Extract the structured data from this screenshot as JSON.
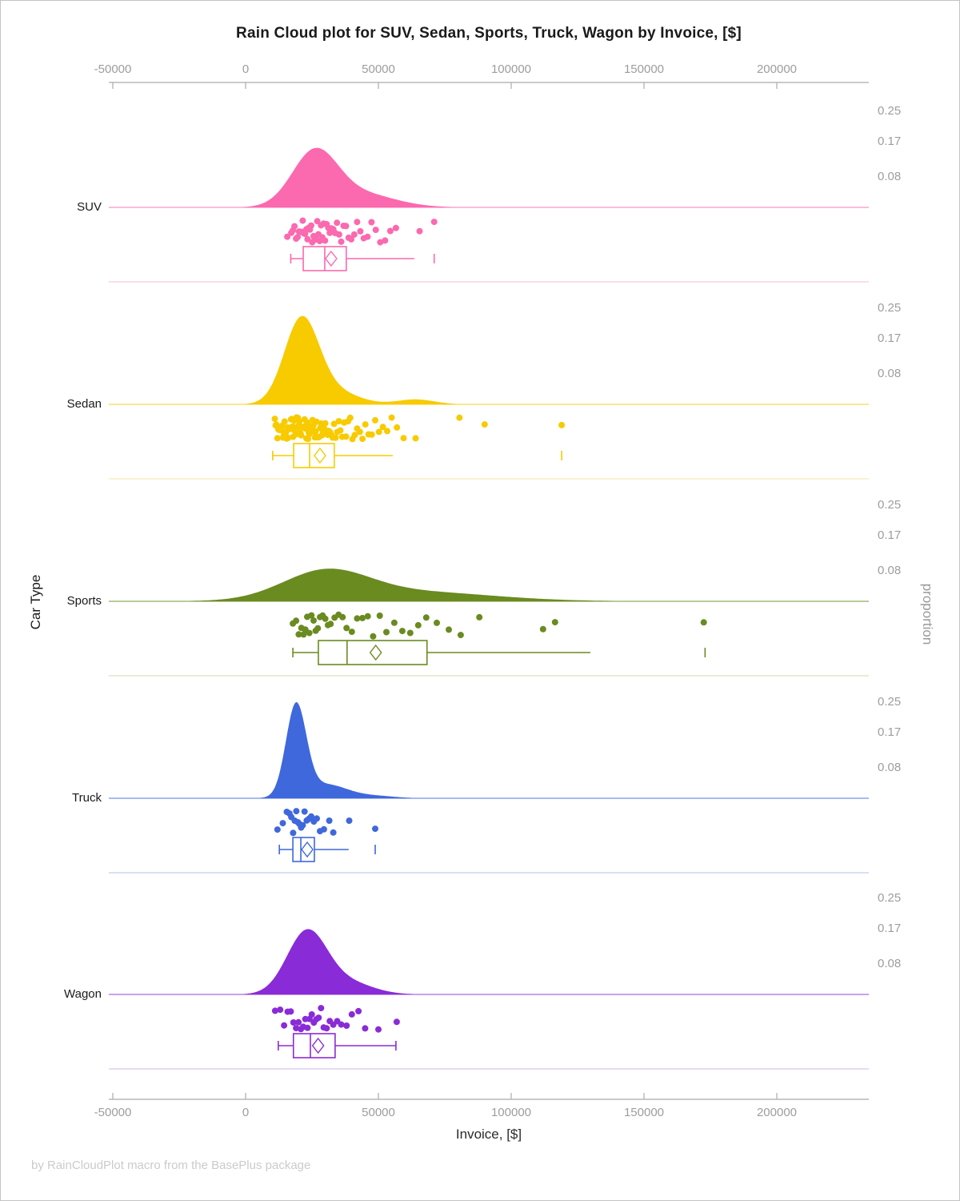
{
  "title": "Rain Cloud plot for SUV, Sedan, Sports, Truck, Wagon by Invoice, [$]",
  "footer": "by RainCloudPlot macro from the BasePlus package",
  "axes": {
    "x": {
      "label": "Invoice, [$]",
      "tick_labels": [
        "-50000",
        "0",
        "50000",
        "100000",
        "150000",
        "200000"
      ]
    },
    "y": {
      "label": "Car Type"
    },
    "y2": {
      "label": "proportion",
      "tick_labels": [
        "0.25",
        "0.17",
        "0.08"
      ]
    }
  },
  "chart_data": {
    "type": "raincloud",
    "title": "Rain Cloud plot for SUV, Sedan, Sports, Truck, Wagon by Invoice, [$]",
    "xlabel": "Invoice, [$]",
    "ylabel": "Car Type",
    "y2label": "proportion",
    "xlim": [
      -51500,
      234500
    ],
    "x_ticks": [
      -50000,
      0,
      50000,
      100000,
      150000,
      200000
    ],
    "proportion_ticks": [
      0.25,
      0.17,
      0.08
    ],
    "legend": "none",
    "grid": "off",
    "categories": [
      {
        "name": "SUV",
        "color": "#fb69af",
        "sep_color": "#fad3e5",
        "density": {
          "peak_proportion": 0.155,
          "components": [
            {
              "mu": 26000,
              "sd": 8500,
              "w": 0.72
            },
            {
              "mu": 43000,
              "sd": 13000,
              "w": 0.28
            }
          ]
        },
        "rain": [
          15700,
          17200,
          17800,
          18400,
          19000,
          19600,
          20100,
          20600,
          21100,
          21500,
          22000,
          22400,
          22900,
          23300,
          23800,
          24200,
          24700,
          25100,
          25600,
          26000,
          26500,
          27000,
          27400,
          27900,
          28400,
          28900,
          29400,
          29900,
          30500,
          31100,
          31700,
          32300,
          33000,
          33700,
          34400,
          35200,
          36000,
          36900,
          37800,
          38800,
          39800,
          40900,
          42000,
          43200,
          44500,
          45900,
          47400,
          49000,
          50700,
          52500,
          54500,
          56600,
          65500,
          71000
        ],
        "box": {
          "whisker_low": 17000,
          "q1": 21700,
          "median": 29800,
          "mean": 32200,
          "q3": 37900,
          "whisker_high": 63500,
          "outliers": [
            71000
          ],
          "cap_low": true,
          "cap_high": false
        }
      },
      {
        "name": "Sedan",
        "color": "#f7cb00",
        "sep_color": "#f8edbf",
        "density": {
          "peak_proportion": 0.23,
          "components": [
            {
              "mu": 21000,
              "sd": 6500,
              "w": 0.78
            },
            {
              "mu": 33000,
              "sd": 9000,
              "w": 0.17
            },
            {
              "mu": 64000,
              "sd": 7000,
              "w": 0.05
            }
          ]
        },
        "rain": [
          11000,
          11300,
          11600,
          12000,
          12300,
          12600,
          12900,
          13200,
          13500,
          13800,
          14100,
          14400,
          14700,
          15000,
          15200,
          15500,
          15800,
          16000,
          16300,
          16600,
          16900,
          17100,
          17400,
          17700,
          17900,
          18200,
          18400,
          18700,
          18900,
          19200,
          19400,
          19700,
          19900,
          20200,
          20400,
          20700,
          20900,
          21200,
          21400,
          21700,
          21900,
          22200,
          22400,
          22700,
          22900,
          23200,
          23500,
          23700,
          24000,
          24300,
          24600,
          24900,
          25200,
          25500,
          25800,
          26100,
          26400,
          26700,
          27000,
          27400,
          27700,
          28100,
          28400,
          28800,
          29200,
          29600,
          30000,
          30400,
          30900,
          31300,
          31800,
          32300,
          32800,
          33300,
          33900,
          34500,
          35100,
          35700,
          36400,
          37100,
          37800,
          38600,
          39400,
          40200,
          41100,
          42000,
          43000,
          44000,
          45100,
          46300,
          47500,
          48800,
          50200,
          51700,
          53300,
          55000,
          57000,
          59500,
          64000,
          80500,
          90000,
          119000
        ],
        "box": {
          "whisker_low": 10200,
          "q1": 18100,
          "median": 24100,
          "mean": 28000,
          "q3": 33400,
          "whisker_high": 55400,
          "outliers": [
            119000
          ],
          "cap_low": true,
          "cap_high": false
        }
      },
      {
        "name": "Sports",
        "color": "#6a8b20",
        "sep_color": "#dee5cb",
        "density": {
          "peak_proportion": 0.085,
          "components": [
            {
              "mu": 30000,
              "sd": 16000,
              "w": 0.6
            },
            {
              "mu": 62000,
              "sd": 30000,
              "w": 0.4
            }
          ]
        },
        "rain": [
          17800,
          19000,
          20000,
          21000,
          21800,
          22500,
          23200,
          24000,
          24800,
          25600,
          26400,
          27200,
          28000,
          29000,
          30000,
          31000,
          32000,
          33500,
          35000,
          36500,
          38000,
          40000,
          42000,
          44000,
          46000,
          48000,
          50500,
          53000,
          56000,
          59000,
          62000,
          65000,
          68000,
          72000,
          76500,
          81000,
          88000,
          112000,
          116500,
          172500
        ],
        "box": {
          "whisker_low": 17800,
          "q1": 27400,
          "median": 38200,
          "mean": 49000,
          "q3": 68300,
          "whisker_high": 129800,
          "outliers": [
            173000
          ],
          "cap_low": true,
          "cap_high": false
        }
      },
      {
        "name": "Truck",
        "color": "#3f68dc",
        "sep_color": "#c8d5f2",
        "density": {
          "peak_proportion": 0.25,
          "components": [
            {
              "mu": 19000,
              "sd": 3800,
              "w": 0.72
            },
            {
              "mu": 30000,
              "sd": 8500,
              "w": 0.25
            },
            {
              "mu": 50000,
              "sd": 7000,
              "w": 0.03
            }
          ]
        },
        "rain": [
          12000,
          14000,
          15500,
          16500,
          17200,
          17900,
          18500,
          19100,
          19700,
          20300,
          20900,
          21500,
          22200,
          23000,
          23800,
          24700,
          25700,
          26800,
          28000,
          29500,
          31500,
          33000,
          39000,
          48800
        ],
        "box": {
          "whisker_low": 12700,
          "q1": 17800,
          "median": 20800,
          "mean": 23200,
          "q3": 25900,
          "whisker_high": 38800,
          "outliers": [
            48800
          ],
          "cap_low": true,
          "cap_high": false
        }
      },
      {
        "name": "Wagon",
        "color": "#8a2bd8",
        "sep_color": "#e0cef2",
        "density": {
          "peak_proportion": 0.17,
          "components": [
            {
              "mu": 23000,
              "sd": 7500,
              "w": 0.8
            },
            {
              "mu": 38000,
              "sd": 9500,
              "w": 0.2
            }
          ]
        },
        "rain": [
          11100,
          13000,
          14500,
          15800,
          17000,
          18000,
          19000,
          19900,
          20800,
          21700,
          22500,
          23300,
          24100,
          24900,
          25700,
          26600,
          27500,
          28400,
          29400,
          30500,
          31700,
          33000,
          34500,
          36000,
          38000,
          40000,
          42500,
          45000,
          50000,
          56900
        ],
        "box": {
          "whisker_low": 12300,
          "q1": 18000,
          "median": 24400,
          "mean": 27300,
          "q3": 33700,
          "whisker_high": 56600,
          "outliers": [],
          "cap_low": true,
          "cap_high": true
        }
      }
    ]
  }
}
